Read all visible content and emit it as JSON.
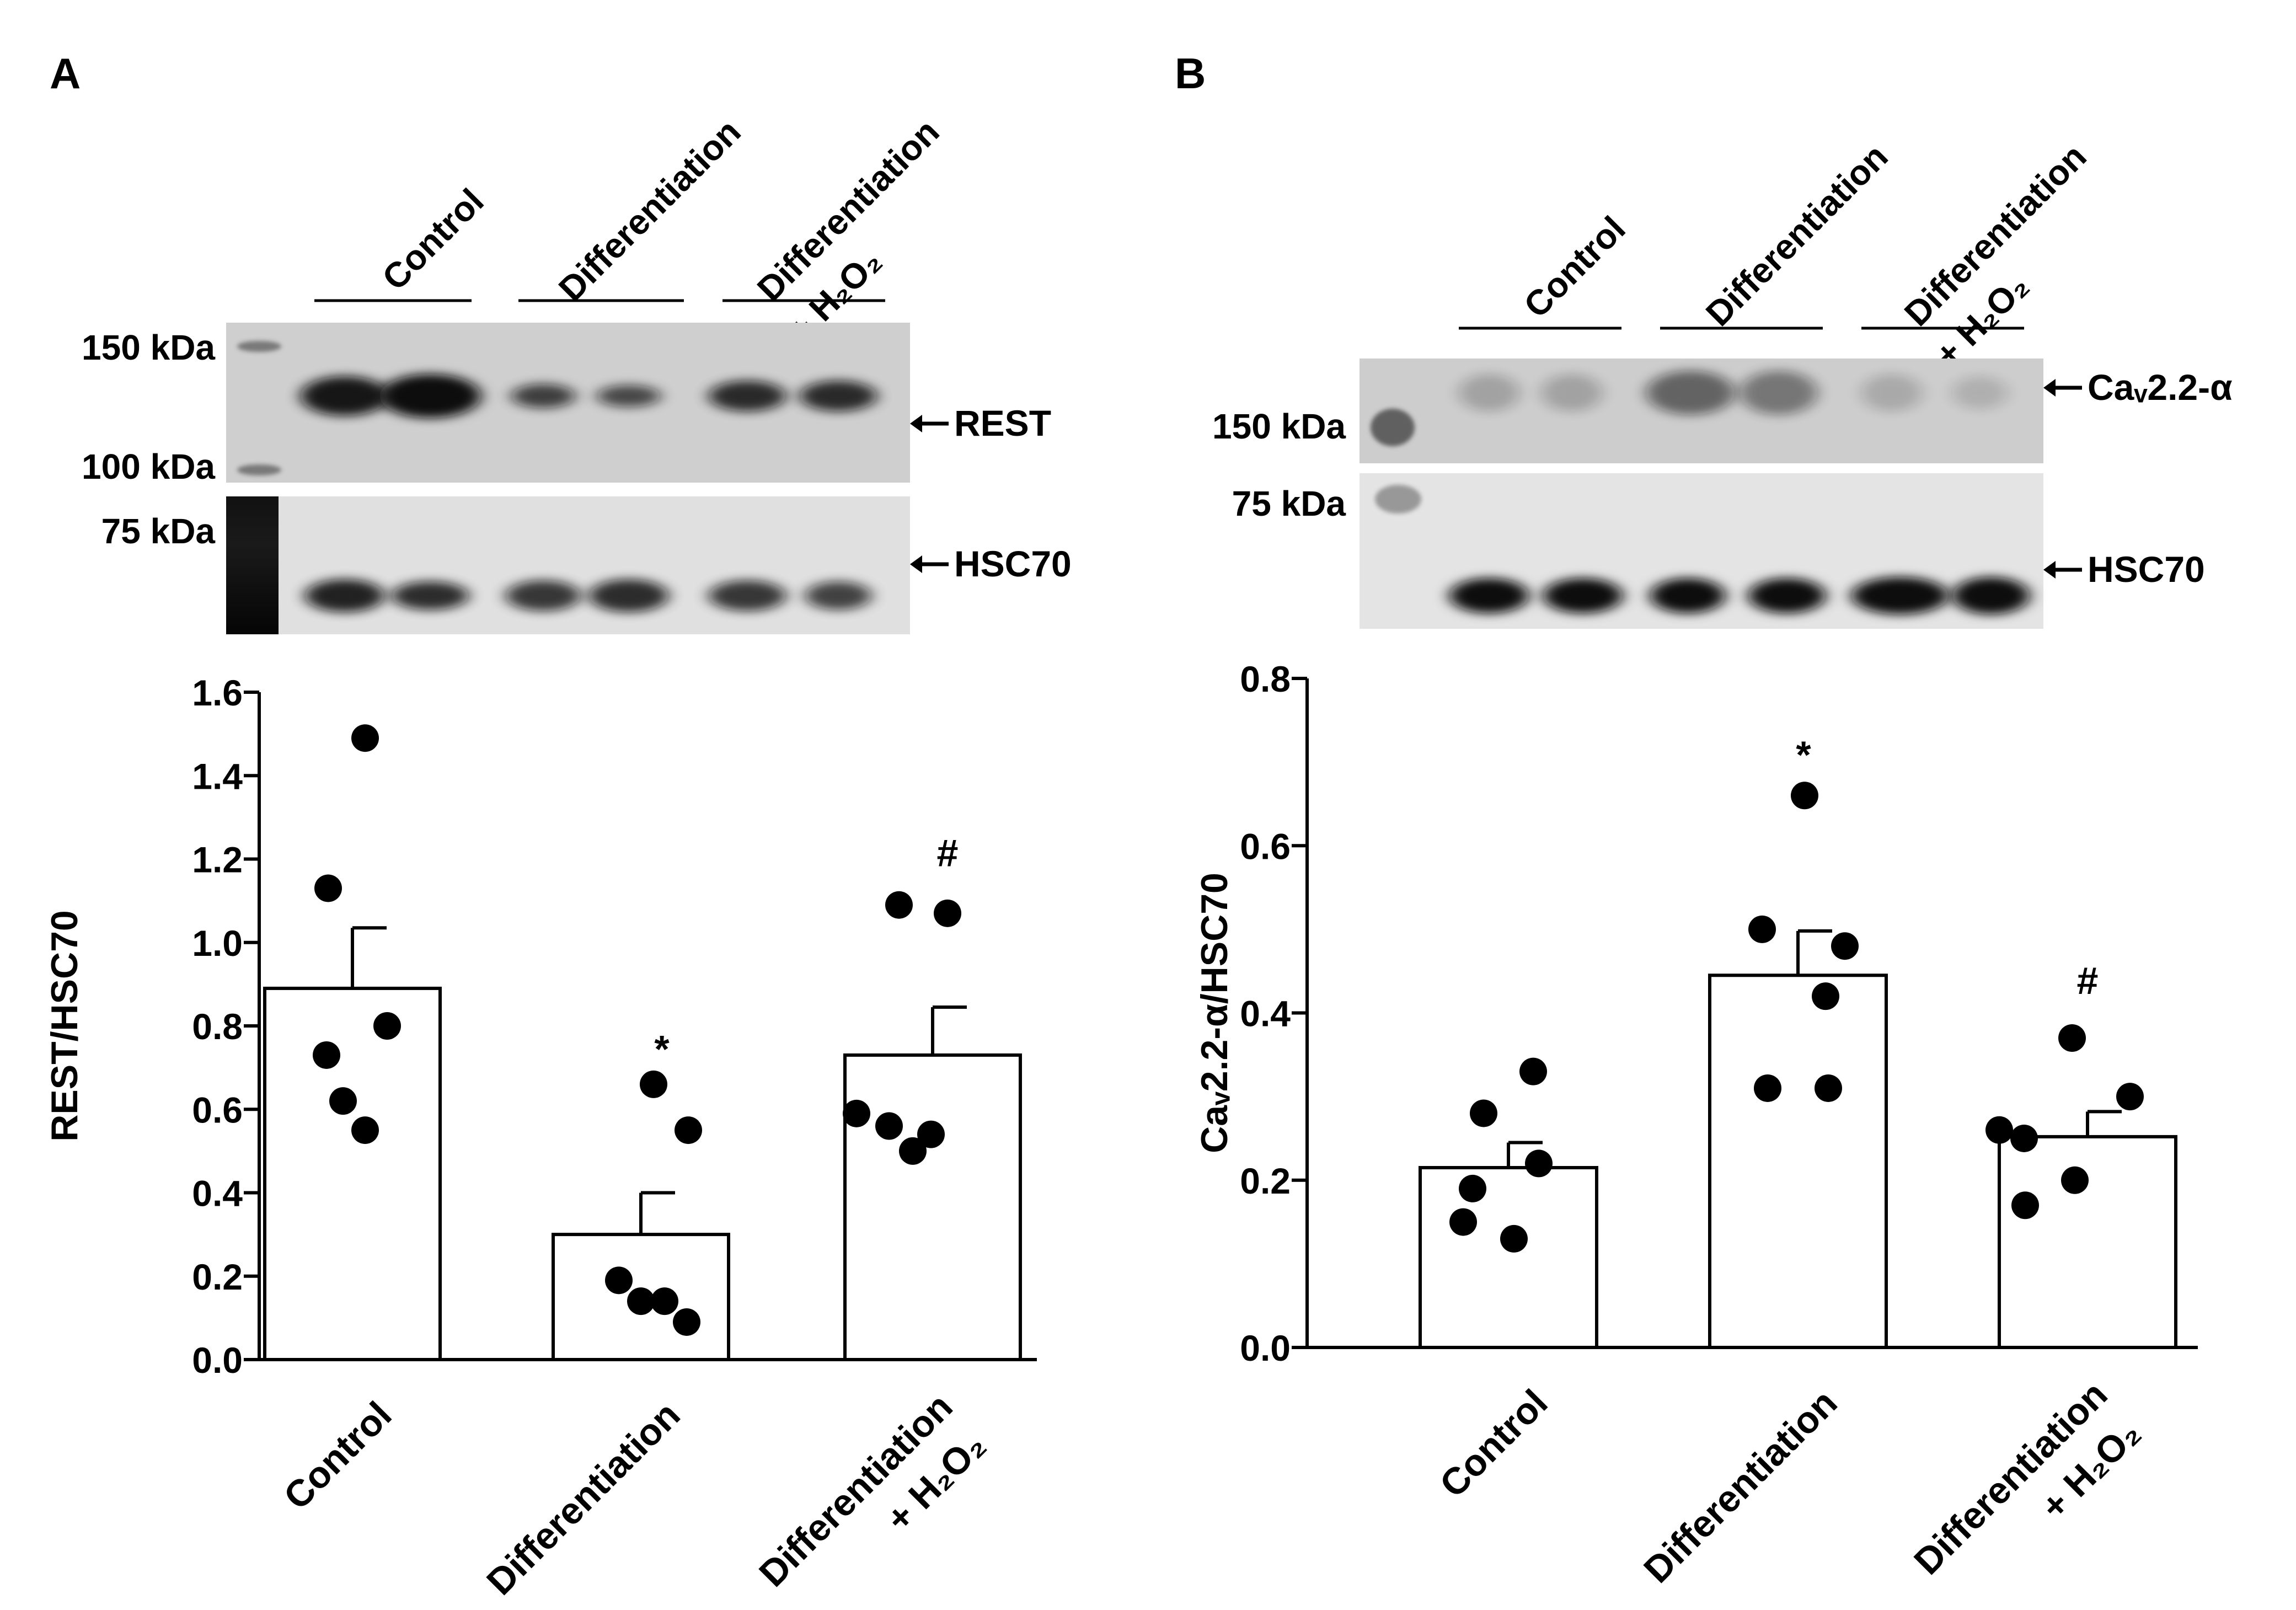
{
  "panels": [
    {
      "letter": "A",
      "blot": {
        "group_labels": [
          {
            "lines": [
              "Control"
            ]
          },
          {
            "lines": [
              "Differentiation"
            ]
          },
          {
            "lines": [
              "Differentiation",
              "+ H₂O₂"
            ]
          }
        ],
        "upper": {
          "markers": [
            "150 kDa",
            "100 kDa"
          ],
          "band_label": "REST"
        },
        "lower": {
          "markers": [
            "75 kDa"
          ],
          "band_label": "HSC70"
        }
      }
    },
    {
      "letter": "B",
      "blot": {
        "group_labels": [
          {
            "lines": [
              "Control"
            ]
          },
          {
            "lines": [
              "Differentiation"
            ]
          },
          {
            "lines": [
              "Differentiation",
              "+ H₂O₂"
            ]
          }
        ],
        "upper": {
          "markers": [
            "150 kDa"
          ],
          "band_label": "Caᵥ2.2-α"
        },
        "lower": {
          "markers": [
            "75 kDa"
          ],
          "band_label": "HSC70"
        }
      }
    }
  ],
  "chart_data": [
    {
      "type": "bar",
      "panel": "A",
      "ylabel": "REST/HSC70",
      "ylim": [
        0,
        1.6
      ],
      "yticks": [
        "0.0",
        "0.2",
        "0.4",
        "0.6",
        "0.8",
        "1.0",
        "1.2",
        "1.4",
        "1.6"
      ],
      "categories": [
        "Control",
        "Differentiation",
        "Differentiation + H₂O₂"
      ],
      "category_tick_labels": [
        [
          "Control"
        ],
        [
          "Differentiation"
        ],
        [
          "Differentiation",
          "+ H₂O₂"
        ]
      ],
      "values": [
        0.89,
        0.3,
        0.73
      ],
      "sem": [
        0.145,
        0.1,
        0.115
      ],
      "points": [
        [
          1.49,
          1.13,
          0.8,
          0.73,
          0.62,
          0.55
        ],
        [
          0.66,
          0.55,
          0.19,
          0.14,
          0.14,
          0.09
        ],
        [
          1.09,
          1.07,
          0.59,
          0.56,
          0.54,
          0.5
        ]
      ],
      "annotations": [
        "",
        "*",
        "#"
      ]
    },
    {
      "type": "bar",
      "panel": "B",
      "ylabel": "Caᵥ2.2-α/HSC70",
      "ylim": [
        0,
        0.8
      ],
      "yticks": [
        "0.0",
        "0.2",
        "0.4",
        "0.6",
        "0.8"
      ],
      "categories": [
        "Control",
        "Differentiation",
        "Differentiation + H₂O₂"
      ],
      "category_tick_labels": [
        [
          "Control"
        ],
        [
          "Differentiation"
        ],
        [
          "Differentiation",
          "+ H₂O₂"
        ]
      ],
      "values": [
        0.215,
        0.445,
        0.252
      ],
      "sem": [
        0.03,
        0.053,
        0.03
      ],
      "points": [
        [
          0.33,
          0.28,
          0.22,
          0.19,
          0.15,
          0.13
        ],
        [
          0.66,
          0.5,
          0.48,
          0.42,
          0.31,
          0.31
        ],
        [
          0.37,
          0.3,
          0.26,
          0.25,
          0.2,
          0.17
        ]
      ],
      "annotations": [
        "",
        "*",
        "#"
      ]
    }
  ]
}
